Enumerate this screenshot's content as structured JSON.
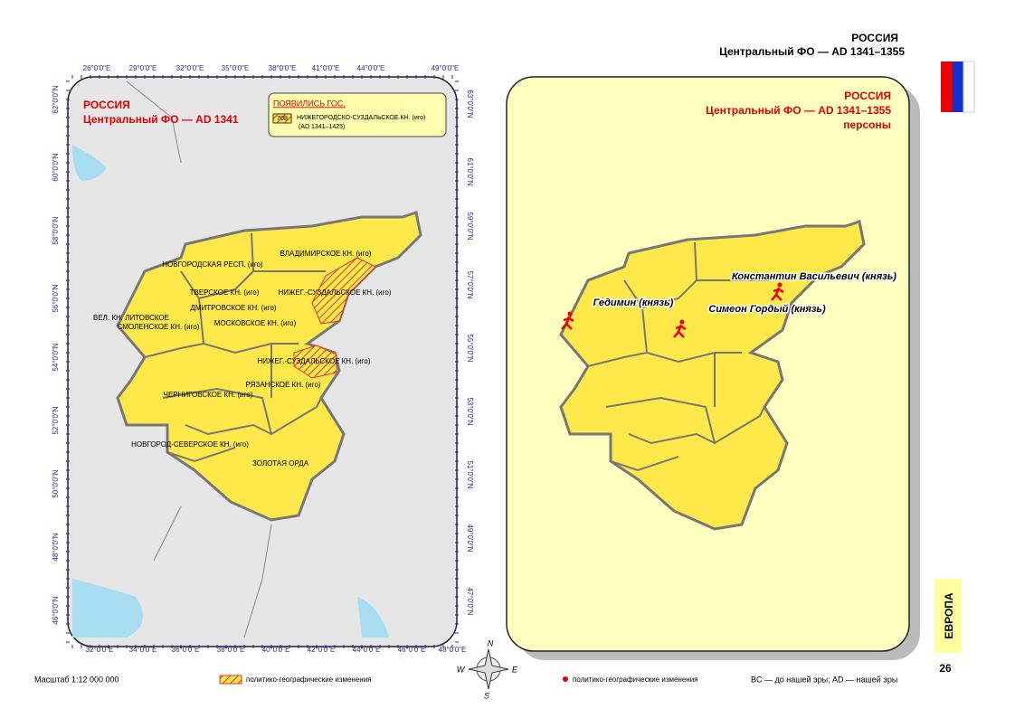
{
  "header": {
    "country": "РОССИЯ",
    "subtitle": "Центральный ФО — AD 1341–1355"
  },
  "left_map": {
    "title": "РОССИЯ",
    "subtitle": "Центральный ФО — AD 1341",
    "top_lon_labels": [
      "26°0'0\"E",
      "29°0'0\"E",
      "32°0'0\"E",
      "35°0'0\"E",
      "38°0'0\"E",
      "41°0'0\"E",
      "44°0'0\"E",
      "49°0'0\"E"
    ],
    "bottom_lon_labels": [
      "32°0'0\"E",
      "34°0'0\"E",
      "36°0'0\"E",
      "38°0'0\"E",
      "40°0'0\"E",
      "42°0'0\"E",
      "44°0'0\"E",
      "46°0'0\"E",
      "48°0'0\"E"
    ],
    "left_lat_labels": [
      "62°0'0\"N",
      "60°0'0\"N",
      "58°0'0\"N",
      "56°0'0\"N",
      "54°0'0\"N",
      "52°0'0\"N",
      "50°0'0\"N",
      "48°0'0\"N",
      "46°0'0\"N"
    ],
    "right_lat_labels": [
      "63°0'0\"N",
      "61°0'0\"N",
      "59°0'0\"N",
      "57°0'0\"N",
      "55°0'0\"N",
      "53°0'0\"N",
      "51°0'0\"N",
      "49°0'0\"N",
      "47°0'0\"N"
    ],
    "legend": {
      "title": "ПОЯВИЛИСЬ ГОС.",
      "item_id": "708",
      "item_name": "НИЖЕГОРОДСКО-СУЗДАЛЬСКОЕ КН. (иго)",
      "item_dates": "(AD 1341–1425)"
    },
    "regions": [
      "ВЛАДИМИРСКОЕ КН. (иго)",
      "НОВГОРОДСКАЯ РЕСП. (иго)",
      "ТВЕРСКОЕ КН. (иго)",
      "НИЖЕГ.-СУЗДАЛЬСКОЕ КН. (иго)",
      "ДМИТРОВСКОЕ КН. (иго)",
      "ВЕЛ. КН. ЛИТОВСКОЕ",
      "СМОЛЕНСКОЕ КН. (иго)",
      "МОСКОВСКОЕ КН. (иго)",
      "НИЖЕГ.-СУЗДАЛЬСКОЕ КН. (иго)",
      "РЯЗАНСКОЕ КН. (иго)",
      "ЧЕРНИГОВСКОЕ КН. (иго)",
      "НОВГОРОД-СЕВЕРСКОЕ КН. (иго)",
      "ЗОЛОТАЯ ОРДА"
    ]
  },
  "right_map": {
    "title": "РОССИЯ",
    "subtitle": "Центральный ФО — AD 1341–1355",
    "caption": "персоны",
    "persons": [
      "Гедимин (князь)",
      "Симеон Гордый (князь)",
      "Константин Васильевич (князь)"
    ]
  },
  "compass": [
    "N",
    "W",
    "E",
    "S"
  ],
  "footer": {
    "scale": "Масштаб 1:12 000 000",
    "legend_hatch": "политико-географические изменения",
    "legend_dot": "политико-географические изменения",
    "note": "BC — до нашей эры; AD — нашей эры",
    "section": "ЕВРОПА",
    "page": "26"
  }
}
